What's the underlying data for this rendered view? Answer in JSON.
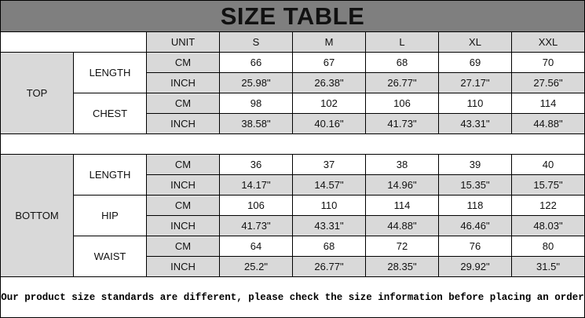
{
  "title": "SIZE TABLE",
  "header": {
    "unit": "UNIT",
    "sizes": [
      "S",
      "M",
      "L",
      "XL",
      "XXL"
    ]
  },
  "sections": [
    {
      "name": "TOP",
      "measures": [
        {
          "name": "LENGTH",
          "rows": [
            {
              "unit": "CM",
              "values": [
                "66",
                "67",
                "68",
                "69",
                "70"
              ]
            },
            {
              "unit": "INCH",
              "values": [
                "25.98\"",
                "26.38\"",
                "26.77\"",
                "27.17\"",
                "27.56\""
              ]
            }
          ]
        },
        {
          "name": "CHEST",
          "rows": [
            {
              "unit": "CM",
              "values": [
                "98",
                "102",
                "106",
                "110",
                "114"
              ]
            },
            {
              "unit": "INCH",
              "values": [
                "38.58\"",
                "40.16\"",
                "41.73\"",
                "43.31\"",
                "44.88\""
              ]
            }
          ]
        }
      ]
    },
    {
      "name": "BOTTOM",
      "measures": [
        {
          "name": "LENGTH",
          "rows": [
            {
              "unit": "CM",
              "values": [
                "36",
                "37",
                "38",
                "39",
                "40"
              ]
            },
            {
              "unit": "INCH",
              "values": [
                "14.17\"",
                "14.57\"",
                "14.96\"",
                "15.35\"",
                "15.75\""
              ]
            }
          ]
        },
        {
          "name": "HIP",
          "rows": [
            {
              "unit": "CM",
              "values": [
                "106",
                "110",
                "114",
                "118",
                "122"
              ]
            },
            {
              "unit": "INCH",
              "values": [
                "41.73\"",
                "43.31\"",
                "44.88\"",
                "46.46\"",
                "48.03\""
              ]
            }
          ]
        },
        {
          "name": "WAIST",
          "rows": [
            {
              "unit": "CM",
              "values": [
                "64",
                "68",
                "72",
                "76",
                "80"
              ]
            },
            {
              "unit": "INCH",
              "values": [
                "25.2\"",
                "26.77\"",
                "28.35\"",
                "29.92\"",
                "31.5\""
              ]
            }
          ]
        }
      ]
    }
  ],
  "footer": "Our product size standards are different, please check the size information before placing an order",
  "colors": {
    "title_bg": "#7f7f7f",
    "shaded_cell": "#d9d9d9"
  }
}
